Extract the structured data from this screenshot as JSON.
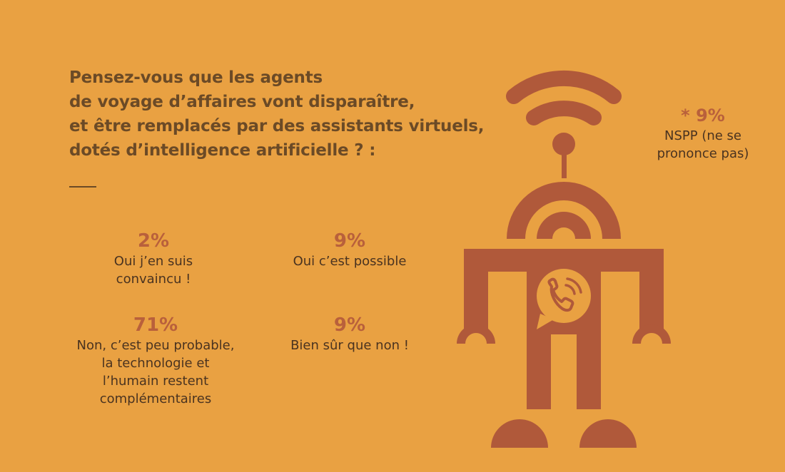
{
  "question": {
    "lines": [
      "Pensez-vous que les agents",
      "de voyage d’affaires vont disparaître,",
      "et être remplacés par des assistants virtuels,",
      "dotés d’intelligence artificielle ? :"
    ]
  },
  "stats": [
    {
      "value": "2%",
      "label_lines": [
        "Oui j’en suis",
        "convaincu !"
      ]
    },
    {
      "value": "9%",
      "label_lines": [
        "Oui c’est possible"
      ]
    },
    {
      "value": "71%",
      "label_lines": [
        "Non, c’est peu probable,",
        "la technologie et",
        "l’humain restent",
        "complémentaires"
      ]
    },
    {
      "value": "9%",
      "label_lines": [
        "Bien sûr que non !"
      ]
    },
    {
      "value": "* 9%",
      "label_lines": [
        "NSPP (ne se",
        "prononce pas)"
      ]
    }
  ],
  "colors": {
    "background": "#E9A142",
    "question_text": "#6B4A26",
    "percent_text": "#B9603B",
    "label_text": "#4A3320",
    "robot": "#B0593A"
  },
  "illustration": {
    "robot_icon": "robot-icon",
    "wifi_icon": "wifi-icon",
    "phone_icon": "phone-icon"
  }
}
